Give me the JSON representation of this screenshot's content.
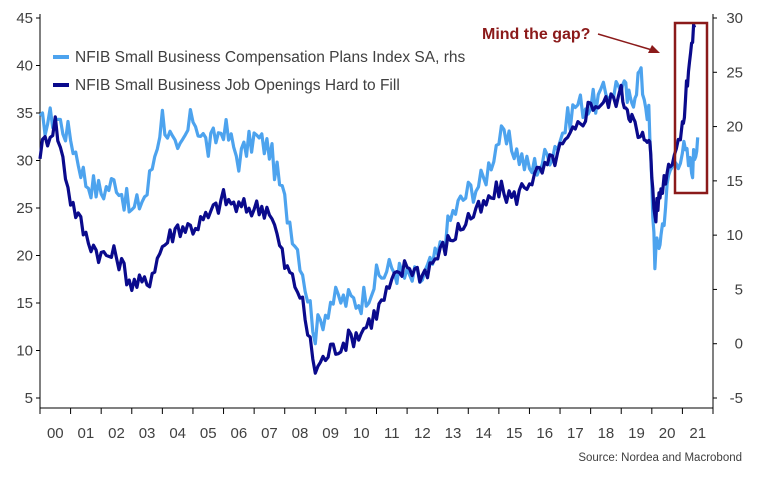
{
  "chart_data": {
    "type": "line",
    "title": "",
    "annotation": "Mind the gap?",
    "source": "Source: Nordea and Macrobond",
    "x_ticks": [
      "00",
      "01",
      "02",
      "03",
      "04",
      "05",
      "06",
      "07",
      "08",
      "09",
      "10",
      "11",
      "12",
      "13",
      "14",
      "15",
      "16",
      "17",
      "18",
      "19",
      "20",
      "21"
    ],
    "y_left": {
      "range": [
        5,
        45
      ],
      "ticks": [
        "5",
        "10",
        "15",
        "20",
        "25",
        "30",
        "35",
        "40",
        "45"
      ]
    },
    "y_right": {
      "range": [
        -5,
        30
      ],
      "ticks": [
        "-5",
        "0",
        "5",
        "10",
        "15",
        "20",
        "25",
        "30"
      ]
    },
    "grid": false,
    "legend_position": "top-left",
    "series": [
      {
        "name": "NFIB Small Business Compensation Plans Index SA, rhs",
        "axis": "right",
        "color": "#4da3ee",
        "x": [
          2000.0,
          2000.5,
          2001.0,
          2001.5,
          2002.0,
          2002.5,
          2003.0,
          2003.5,
          2004.0,
          2004.5,
          2005.0,
          2005.5,
          2006.0,
          2006.5,
          2007.0,
          2007.5,
          2008.0,
          2008.5,
          2009.0,
          2009.5,
          2010.0,
          2010.5,
          2011.0,
          2011.5,
          2012.0,
          2012.5,
          2013.0,
          2013.5,
          2014.0,
          2014.5,
          2015.0,
          2015.5,
          2016.0,
          2016.5,
          2017.0,
          2017.5,
          2018.0,
          2018.5,
          2019.0,
          2019.3,
          2019.6,
          2019.9,
          2020.1,
          2020.3,
          2020.6,
          2021.0,
          2021.3,
          2021.5
        ],
        "y": [
          20,
          21,
          19,
          15,
          14,
          15,
          12,
          14,
          21,
          17,
          21,
          18,
          20,
          17,
          19,
          18,
          13,
          8,
          1,
          4,
          4,
          4,
          6,
          7,
          6,
          6,
          8,
          12,
          14,
          15,
          19,
          18,
          16,
          17,
          19,
          22,
          22,
          23,
          24,
          22,
          25,
          21,
          8,
          10,
          16,
          18,
          16,
          19
        ]
      },
      {
        "name": "NFIB Small Business Job Openings Hard to Fill",
        "axis": "left",
        "color": "#0a0a8c",
        "x": [
          2000.0,
          2000.5,
          2001.0,
          2001.5,
          2002.0,
          2002.5,
          2003.0,
          2003.5,
          2004.0,
          2004.5,
          2005.0,
          2005.5,
          2006.0,
          2006.5,
          2007.0,
          2007.5,
          2008.0,
          2008.5,
          2009.0,
          2009.5,
          2010.0,
          2010.5,
          2011.0,
          2011.5,
          2012.0,
          2012.5,
          2013.0,
          2013.5,
          2014.0,
          2014.5,
          2015.0,
          2015.5,
          2016.0,
          2016.5,
          2017.0,
          2017.5,
          2018.0,
          2018.5,
          2019.0,
          2019.3,
          2019.6,
          2019.9,
          2020.1,
          2020.3,
          2020.6,
          2021.0,
          2021.2,
          2021.4
        ],
        "y": [
          31,
          34,
          26,
          22,
          20,
          20,
          17,
          17,
          21,
          23,
          23,
          24,
          26,
          25,
          25,
          25,
          19,
          16,
          8,
          10,
          11,
          12,
          14,
          17,
          19,
          18,
          20,
          22,
          24,
          25,
          27,
          26,
          28,
          29,
          31,
          33,
          36,
          36,
          37,
          35,
          32,
          33,
          24,
          27,
          30,
          33,
          40,
          44
        ]
      }
    ]
  }
}
